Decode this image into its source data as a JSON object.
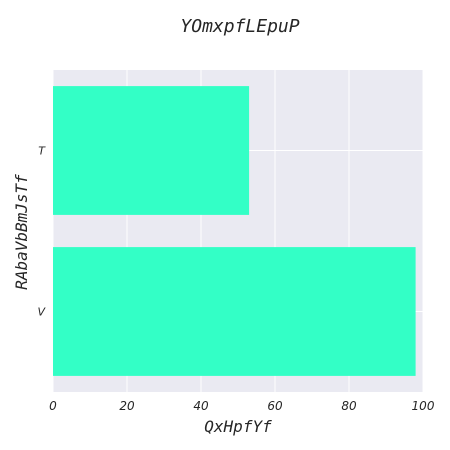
{
  "chart_data": {
    "type": "bar",
    "orientation": "horizontal",
    "title": "YOmxpfLEpuP",
    "xlabel": "QxHpfYf",
    "ylabel": "RAbaVbBmJsTf",
    "categories": [
      "V",
      "T"
    ],
    "values": [
      98,
      53
    ],
    "xlim": [
      0,
      100
    ],
    "xticks": [
      0,
      20,
      40,
      60,
      80,
      100
    ],
    "grid": true,
    "bar_color": "#33ffc6",
    "background_color": "#eaeaf2",
    "grid_color": "#ffffff"
  }
}
